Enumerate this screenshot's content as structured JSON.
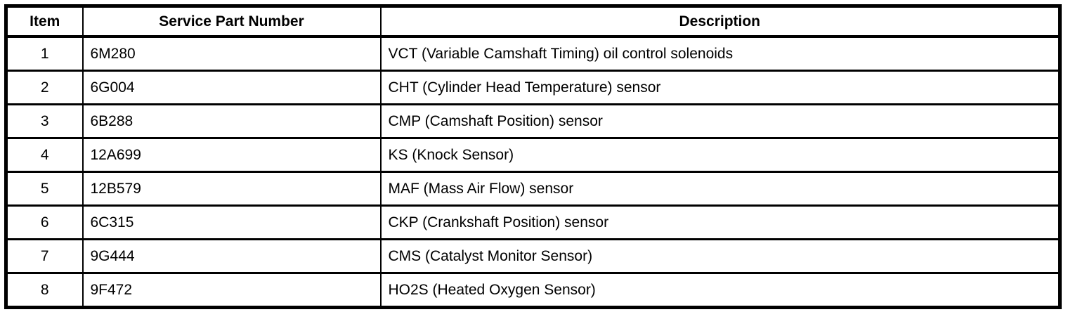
{
  "table": {
    "border_color": "#000000",
    "background_color": "#ffffff",
    "headers": {
      "item": "Item",
      "part_number": "Service Part Number",
      "description": "Description"
    },
    "rows": [
      {
        "item": "1",
        "part_number": "6M280",
        "description": "VCT (Variable Camshaft Timing) oil control solenoids"
      },
      {
        "item": "2",
        "part_number": "6G004",
        "description": "CHT (Cylinder Head Temperature) sensor"
      },
      {
        "item": "3",
        "part_number": "6B288",
        "description": "CMP (Camshaft Position) sensor"
      },
      {
        "item": "4",
        "part_number": "12A699",
        "description": "KS (Knock Sensor)"
      },
      {
        "item": "5",
        "part_number": "12B579",
        "description": "MAF (Mass Air Flow) sensor"
      },
      {
        "item": "6",
        "part_number": "6C315",
        "description": "CKP (Crankshaft Position) sensor"
      },
      {
        "item": "7",
        "part_number": "9G444",
        "description": "CMS (Catalyst Monitor Sensor)"
      },
      {
        "item": "8",
        "part_number": "9F472",
        "description": "HO2S (Heated Oxygen Sensor)"
      }
    ]
  }
}
